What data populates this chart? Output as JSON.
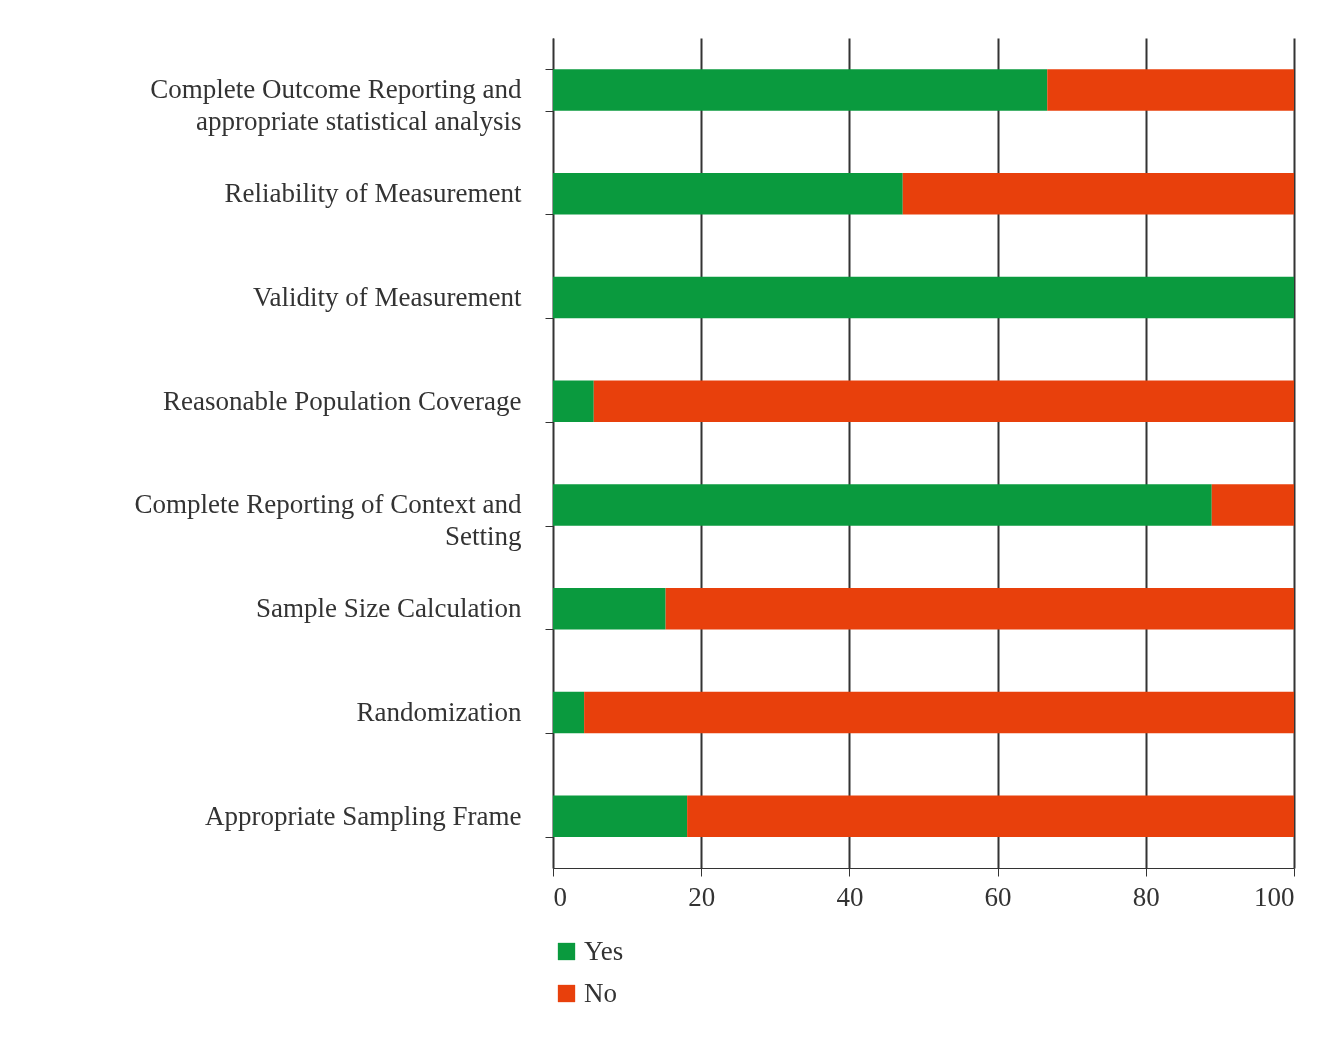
{
  "chart_data": {
    "type": "bar",
    "orientation": "horizontal",
    "stacked": true,
    "categories": [
      "Complete Outcome Reporting and appropriate statistical analysis",
      "Reliability of Measurement",
      "Validity of Measurement",
      "Reasonable Population Coverage",
      "Complete Reporting of Context and Setting",
      "Sample Size Calculation",
      "Randomization",
      "Appropriate Sampling Frame"
    ],
    "series": [
      {
        "name": "Yes",
        "color": "#0a9a3e",
        "values": [
          66.7,
          47.2,
          100,
          5.5,
          88.9,
          15.2,
          4.2,
          18.1
        ]
      },
      {
        "name": "No",
        "color": "#e8400c",
        "values": [
          33.3,
          52.8,
          0,
          94.5,
          11.1,
          84.8,
          95.8,
          81.9
        ]
      }
    ],
    "xlim": [
      0,
      100
    ],
    "xticks": [
      0,
      20,
      40,
      60,
      80,
      100
    ],
    "grid": "x",
    "legend": "bottom left"
  }
}
